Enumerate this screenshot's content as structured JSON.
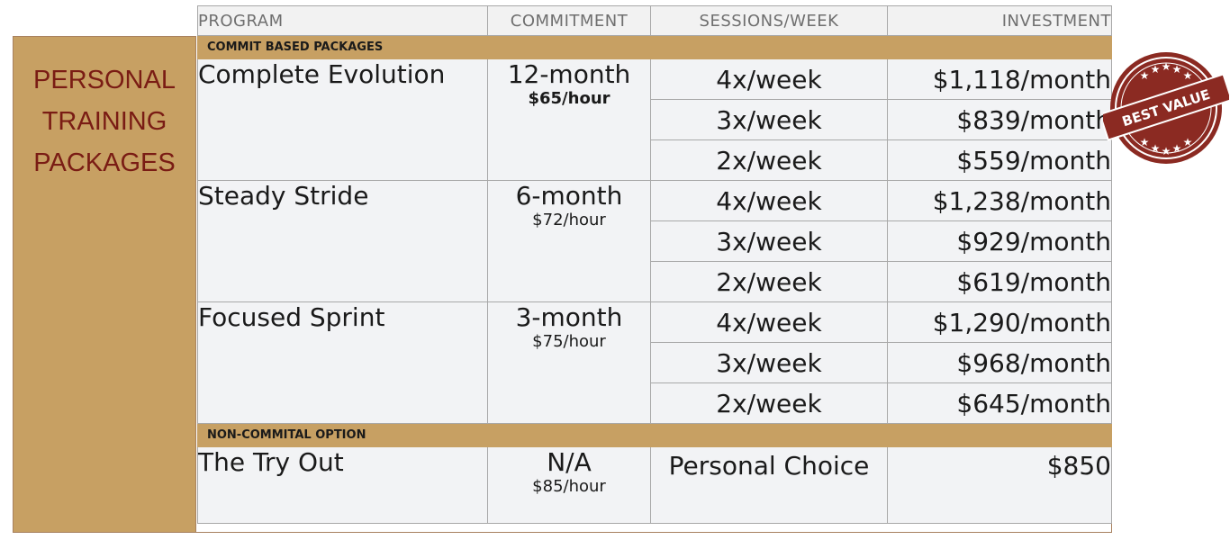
{
  "side_title": [
    "PERSONAL",
    "TRAINING",
    "PACKAGES"
  ],
  "headers": {
    "program": "PROGRAM",
    "commitment": "COMMITMENT",
    "sessions": "SESSIONS/WEEK",
    "investment": "INVESTMENT"
  },
  "sections": {
    "commit": "COMMIT BASED PACKAGES",
    "noncommit": "NON-COMMITAL OPTION"
  },
  "packages": [
    {
      "name": "Complete Evolution",
      "term": "12-month",
      "rate": "$65/hour",
      "rows": [
        {
          "sessions": "4x/week",
          "price": "$1,118/month"
        },
        {
          "sessions": "3x/week",
          "price": "$839/month"
        },
        {
          "sessions": "2x/week",
          "price": "$559/month"
        }
      ]
    },
    {
      "name": "Steady Stride",
      "term": "6-month",
      "rate": "$72/hour",
      "rows": [
        {
          "sessions": "4x/week",
          "price": "$1,238/month"
        },
        {
          "sessions": "3x/week",
          "price": "$929/month"
        },
        {
          "sessions": "2x/week",
          "price": "$619/month"
        }
      ]
    },
    {
      "name": "Focused Sprint",
      "term": "3-month",
      "rate": "$75/hour",
      "rows": [
        {
          "sessions": "4x/week",
          "price": "$1,290/month"
        },
        {
          "sessions": "3x/week",
          "price": "$968/month"
        },
        {
          "sessions": "2x/week",
          "price": "$645/month"
        }
      ]
    }
  ],
  "tryout": {
    "name": "The Try Out",
    "term": "N/A",
    "rate": "$85/hour",
    "sessions": "Personal Choice",
    "price": "$850"
  },
  "badge": {
    "text": "BEST VALUE",
    "color": "#8b2a22"
  },
  "colors": {
    "tan": "#c7a063",
    "title_red": "#7a1c14",
    "row_bg": "#f2f3f5"
  }
}
